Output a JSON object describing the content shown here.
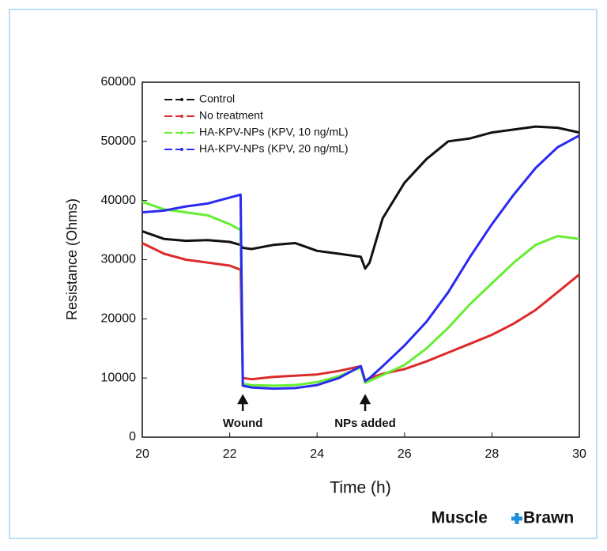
{
  "chart_data": {
    "type": "line",
    "ylabel": "Resistance (Ohms)",
    "xlabel": "Time (h)",
    "xlim": [
      20,
      30
    ],
    "xticks": [
      20,
      22,
      24,
      26,
      28,
      30
    ],
    "ylim": [
      0,
      60000
    ],
    "yticks": [
      0,
      10000,
      20000,
      30000,
      40000,
      50000,
      60000
    ],
    "legend": "upper left",
    "x": [
      20,
      20.5,
      21,
      21.5,
      22,
      22.25,
      22.3,
      22.5,
      23,
      23.5,
      24,
      24.5,
      25,
      25.1,
      25.2,
      25.5,
      26,
      26.5,
      27,
      27.5,
      28,
      28.5,
      29,
      29.5,
      30
    ],
    "series": [
      {
        "name": "Control",
        "color": "#111111",
        "values": [
          34800,
          33500,
          33200,
          33300,
          33000,
          32500,
          32000,
          31800,
          32500,
          32800,
          31500,
          31000,
          30500,
          28500,
          29500,
          37000,
          43000,
          47000,
          50000,
          50500,
          51500,
          52000,
          52500,
          52300,
          51500
        ]
      },
      {
        "name": "No treatment",
        "color": "#dd2a2a",
        "values": [
          32800,
          31000,
          30000,
          29500,
          29000,
          28300,
          10000,
          9800,
          10200,
          10400,
          10600,
          11200,
          12000,
          9500,
          10000,
          10700,
          11500,
          12800,
          14300,
          15800,
          17300,
          19200,
          21500,
          24500,
          27500
        ]
      },
      {
        "name": "HA-KPV-NPs (KPV, 10 ng/mL)",
        "color": "#66ee33",
        "values": [
          39800,
          38500,
          38000,
          37500,
          36000,
          35000,
          9000,
          8800,
          8700,
          8800,
          9300,
          10300,
          11800,
          9200,
          9500,
          10500,
          12200,
          15000,
          18500,
          22500,
          26000,
          29500,
          32500,
          34000,
          33500
        ]
      },
      {
        "name": "HA-KPV-NPs (KPV, 20 ng/mL)",
        "color": "#2a2af0",
        "values": [
          38000,
          38300,
          39000,
          39500,
          40500,
          41000,
          8700,
          8400,
          8200,
          8300,
          8800,
          10000,
          12000,
          9500,
          10000,
          12000,
          15500,
          19500,
          24500,
          30500,
          36000,
          41000,
          45500,
          49000,
          51000
        ]
      }
    ],
    "annotations": [
      {
        "text": "Wound",
        "x": 22.3
      },
      {
        "text": "NPs added",
        "x": 25.1
      }
    ]
  },
  "brand": {
    "left": "Muscle",
    "right": "Brawn"
  }
}
